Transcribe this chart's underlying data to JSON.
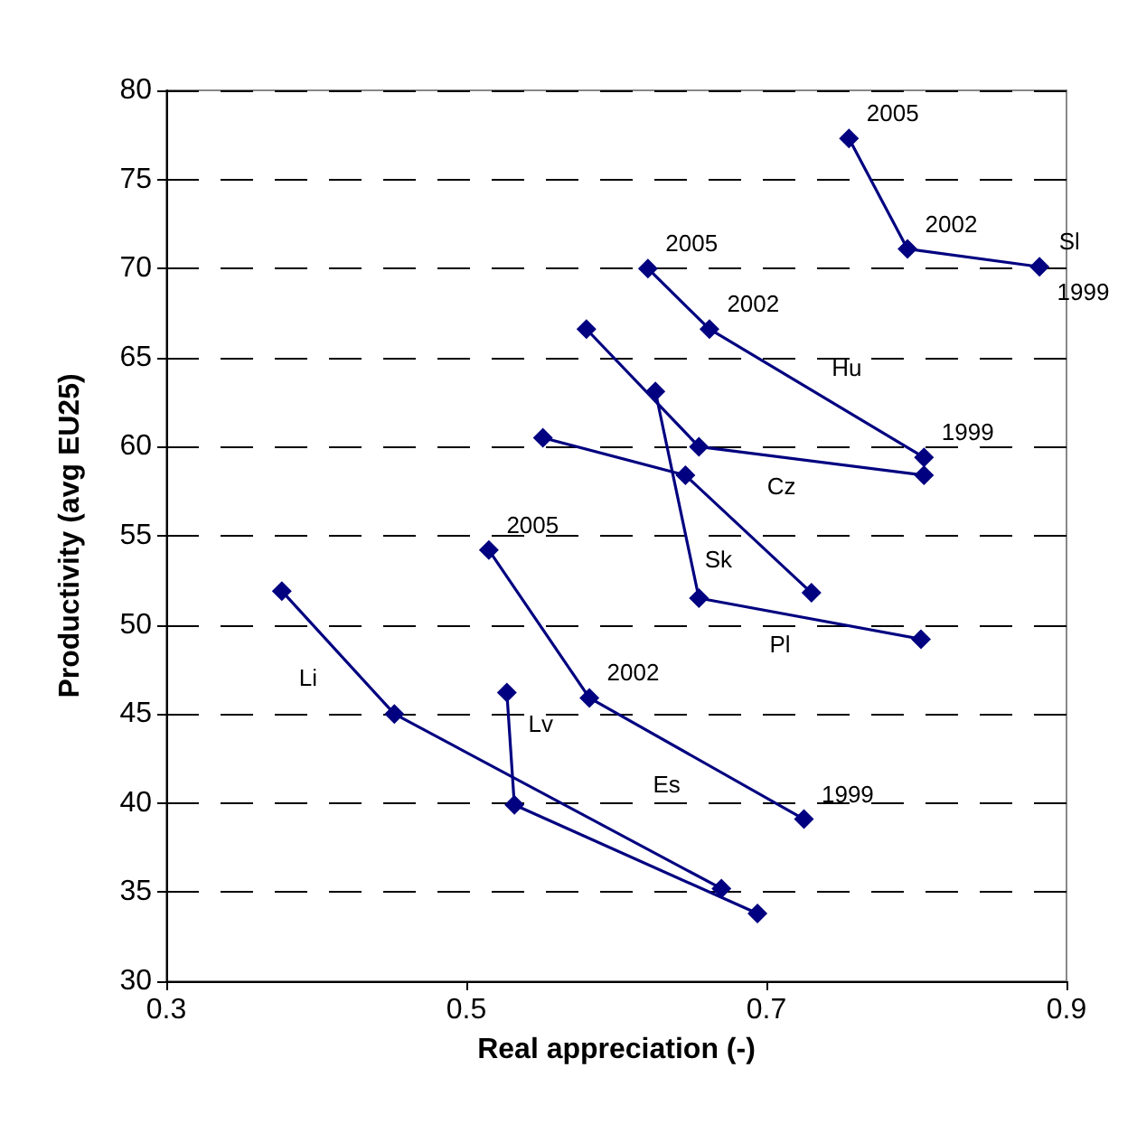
{
  "chart_data": {
    "type": "line",
    "xlabel": "Real appreciation (-)",
    "ylabel": "Productivity (avg EU25)",
    "xlim": [
      0.3,
      0.9
    ],
    "xticks": [
      0.3,
      0.5,
      0.7,
      0.9
    ],
    "ylim": [
      30,
      80
    ],
    "yticks": [
      30,
      35,
      40,
      45,
      50,
      55,
      60,
      65,
      70,
      75,
      80
    ],
    "grid": "y",
    "marker": "diamond",
    "line_style": "solid",
    "series": [
      {
        "color": "#000080",
        "x": [
          0.755,
          0.794,
          0.882
        ],
        "values": [
          77.3,
          71.1,
          70.1
        ]
      },
      {
        "color": "#000080",
        "x": [
          0.621,
          0.662,
          0.805
        ],
        "values": [
          70,
          66.6,
          59.4
        ]
      },
      {
        "color": "#000080",
        "x": [
          0.58,
          0.655,
          0.805
        ],
        "values": [
          66.6,
          60,
          58.4
        ]
      },
      {
        "color": "#000080",
        "x": [
          0.626,
          0.655,
          0.803
        ],
        "values": [
          63.1,
          51.5,
          49.2
        ]
      },
      {
        "color": "#000080",
        "x": [
          0.551,
          0.646,
          0.73
        ],
        "values": [
          60.5,
          58.4,
          51.8
        ]
      },
      {
        "color": "#000080",
        "x": [
          0.515,
          0.582,
          0.725
        ],
        "values": [
          54.2,
          45.9,
          39.1
        ]
      },
      {
        "color": "#000080",
        "x": [
          0.377,
          0.452,
          0.67
        ],
        "values": [
          51.9,
          45,
          35.2
        ]
      },
      {
        "color": "#000080",
        "x": [
          0.527,
          0.532,
          0.694
        ],
        "values": [
          46.2,
          39.9,
          33.8
        ]
      }
    ],
    "annotations": [
      {
        "text": "2005",
        "x": 0.755,
        "y": 77.3
      },
      {
        "text": "2002",
        "x": 0.794,
        "y": 71.1
      },
      {
        "text": "Sl",
        "x": 0.882,
        "y": 70.1
      },
      {
        "text": "1999",
        "x": 0.882,
        "y": 70.1
      },
      {
        "text": "2005",
        "x": 0.621,
        "y": 70
      },
      {
        "text": "2002",
        "x": 0.662,
        "y": 66.6
      },
      {
        "text": "Hu",
        "x": 0.7335,
        "y": 63
      },
      {
        "text": "1999",
        "x": 0.805,
        "y": 59.4
      },
      {
        "text": "Cz",
        "x": 0.73,
        "y": 59.2
      },
      {
        "text": "Sk",
        "x": 0.688,
        "y": 55.1
      },
      {
        "text": "Pl",
        "x": 0.729,
        "y": 50.35
      },
      {
        "text": "2005",
        "x": 0.515,
        "y": 54.2
      },
      {
        "text": "2002",
        "x": 0.582,
        "y": 45.9
      },
      {
        "text": "Es",
        "x": 0.6535,
        "y": 42.5
      },
      {
        "text": "1999",
        "x": 0.725,
        "y": 39.1
      },
      {
        "text": "Li",
        "x": 0.4145,
        "y": 48.45
      },
      {
        "text": "Lv",
        "x": 0.5295,
        "y": 43.05
      }
    ]
  }
}
